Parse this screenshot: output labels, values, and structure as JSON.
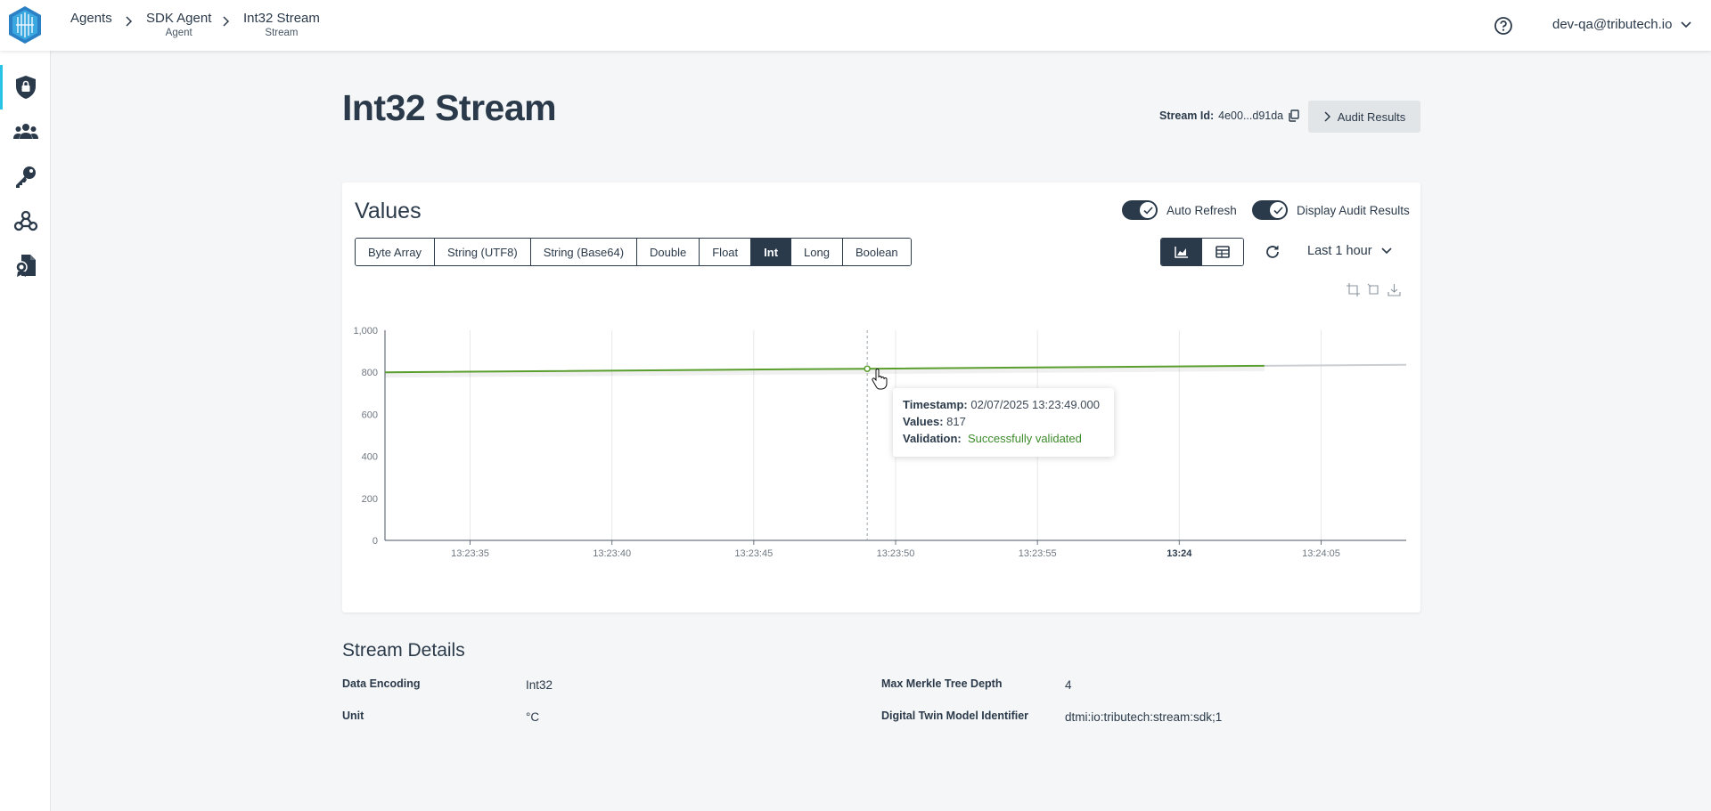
{
  "breadcrumb": [
    {
      "label": "Agents",
      "sub": ""
    },
    {
      "label": "SDK Agent",
      "sub": "Agent"
    },
    {
      "label": "Int32 Stream",
      "sub": "Stream"
    }
  ],
  "user": {
    "email": "dev-qa@tributech.io"
  },
  "sidebar": {
    "items": [
      "security-icon",
      "users-icon",
      "key-icon",
      "webhook-icon",
      "certificate-icon"
    ],
    "active": "security-icon"
  },
  "page": {
    "title": "Int32 Stream",
    "stream_id_label": "Stream Id:",
    "stream_id_value": "4e00...d91da",
    "audit_button": "Audit Results"
  },
  "values_card": {
    "title": "Values",
    "toggles": [
      {
        "label": "Auto Refresh",
        "on": true
      },
      {
        "label": "Display Audit Results",
        "on": true
      }
    ],
    "encodings": [
      "Byte Array",
      "String (UTF8)",
      "String (Base64)",
      "Double",
      "Float",
      "Int",
      "Long",
      "Boolean"
    ],
    "active_encoding": "Int",
    "view": "chart",
    "time_range": "Last 1 hour"
  },
  "tooltip": {
    "timestamp_label": "Timestamp:",
    "timestamp_value": "02/07/2025 13:23:49.000",
    "values_label": "Values:",
    "values_value": "817",
    "validation_label": "Validation:",
    "validation_value": "Successfully validated"
  },
  "chart_data": {
    "type": "line",
    "title": "",
    "xlabel": "",
    "ylabel": "",
    "ylim": [
      0,
      1000
    ],
    "yticks": [
      0,
      200,
      400,
      600,
      800,
      1000
    ],
    "ytick_labels": [
      "0",
      "200",
      "400",
      "600",
      "800",
      "1,000"
    ],
    "xticks": [
      "13:23:35",
      "13:23:40",
      "13:23:45",
      "13:23:50",
      "13:23:55",
      "13:24",
      "13:24:05"
    ],
    "xlim_seconds": [
      32,
      68
    ],
    "grid": true,
    "series": [
      {
        "x": [
          "13:23:32",
          "13:23:49",
          "13:24:03"
        ],
        "y": [
          800,
          817,
          831
        ]
      }
    ],
    "projection": {
      "x": [
        "13:24:03",
        "13:24:08"
      ],
      "y": [
        831,
        836
      ]
    },
    "highlight": {
      "x": "13:23:49",
      "y": 817
    },
    "colors": {
      "line": "#5a9e2e",
      "projection": "#c9ced3",
      "grid": "#e7e9ec"
    }
  },
  "details": {
    "title": "Stream Details",
    "rows": [
      {
        "label": "Data Encoding",
        "value": "Int32"
      },
      {
        "label": "Unit",
        "value": "°C"
      },
      {
        "label": "Max Merkle Tree Depth",
        "value": "4"
      },
      {
        "label": "Digital Twin Model Identifier",
        "value": "dtmi:io:tributech:stream:sdk;1"
      }
    ]
  }
}
